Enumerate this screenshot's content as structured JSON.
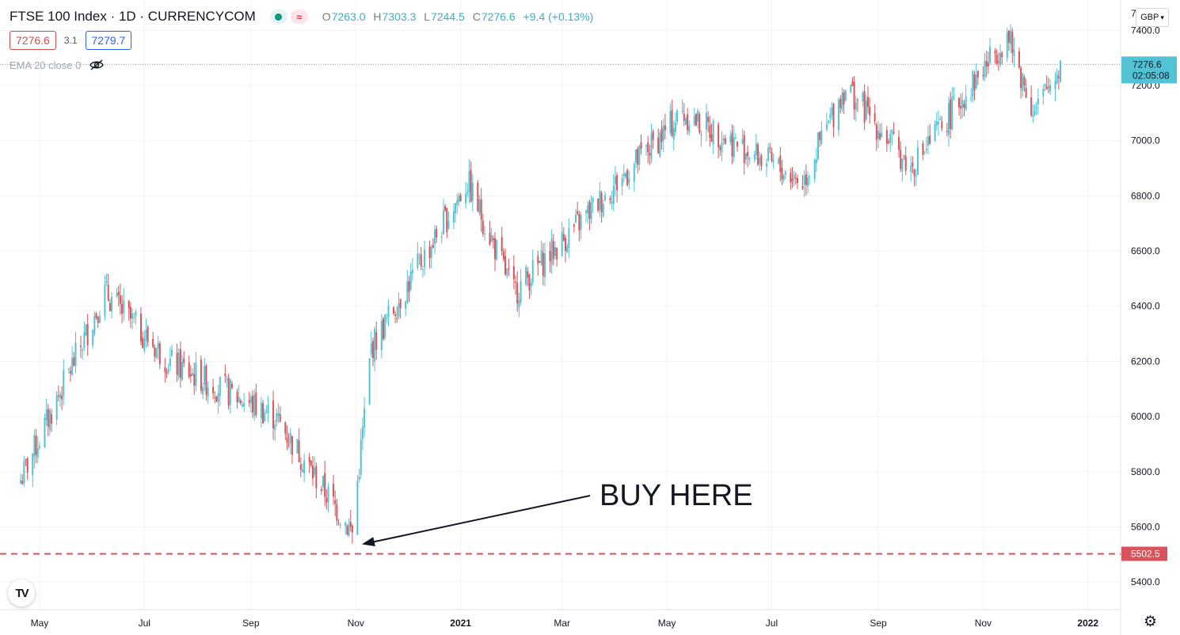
{
  "header": {
    "title": "FTSE 100 Index · 1D · CURRENCYCOM",
    "open_label": "O",
    "open": "7263.0",
    "high_label": "H",
    "high": "7303.3",
    "low_label": "L",
    "low": "7244.5",
    "close_label": "C",
    "close": "7276.6",
    "change": "+9.4 (+0.13%)",
    "pink_icon_glyph": "≈"
  },
  "quote": {
    "bid": "7276.6",
    "spread": "3.1",
    "ask": "7279.7"
  },
  "indicator": {
    "label": "EMA 20 close 0",
    "icon": "eye-off-icon"
  },
  "currency": {
    "label": "GBP",
    "icon": "chevron-down-icon"
  },
  "price_tag": {
    "price": "7276.6",
    "countdown": "02:05:08"
  },
  "support_tag": {
    "price": "5502.5"
  },
  "annotation": {
    "text": "BUY HERE"
  },
  "top_axis_fragment": "7",
  "colors": {
    "up": "#53c2d4",
    "down": "#d9545a",
    "support": "#d9545a",
    "accent": "#26a69a"
  },
  "chart_data": {
    "type": "candlestick",
    "title": "FTSE 100 Index · 1D · CURRENCYCOM",
    "x_tick_labels": [
      "May",
      "Jul",
      "Sep",
      "Nov",
      "2021",
      "Mar",
      "May",
      "Jul",
      "Sep",
      "Nov",
      "2022"
    ],
    "y_tick_labels": [
      "5400.0",
      "5600.0",
      "5800.0",
      "6000.0",
      "6200.0",
      "6400.0",
      "6600.0",
      "6800.0",
      "7000.0",
      "7200.0",
      "7400.0"
    ],
    "ylim": [
      5300,
      7510
    ],
    "xlim": [
      "2020-04-08",
      "2022-01-20"
    ],
    "key_points": [
      {
        "date": "2020-04-20",
        "close": 5770
      },
      {
        "date": "2020-06-08",
        "close": 6450
      },
      {
        "date": "2020-07-15",
        "close": 6200
      },
      {
        "date": "2020-09-15",
        "close": 6000
      },
      {
        "date": "2020-10-30",
        "close": 5580
      },
      {
        "date": "2020-11-10",
        "close": 6250
      },
      {
        "date": "2021-01-05",
        "close": 6850
      },
      {
        "date": "2021-02-01",
        "close": 6450
      },
      {
        "date": "2021-05-10",
        "close": 7100
      },
      {
        "date": "2021-07-19",
        "close": 6850
      },
      {
        "date": "2021-08-13",
        "close": 7200
      },
      {
        "date": "2021-09-20",
        "close": 6900
      },
      {
        "date": "2021-11-15",
        "close": 7380
      },
      {
        "date": "2021-12-01",
        "close": 7100
      },
      {
        "date": "2021-12-16",
        "close": 7276.6
      }
    ],
    "last_price": 7276.6,
    "support_level": 5502.5,
    "grid": true,
    "annotations": [
      {
        "text": "BUY HERE",
        "points_to_date": "2020-10-30",
        "points_to_price": 5560
      }
    ]
  }
}
